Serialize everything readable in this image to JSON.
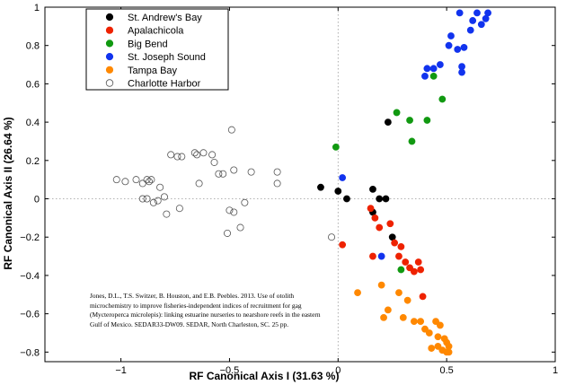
{
  "chart_data": {
    "type": "scatter",
    "title": "",
    "xlabel": "RF Canonical Axis I  (31.63 %)",
    "ylabel": "RF Canonical Axis II (26.64 %)",
    "xlim": [
      -1.35,
      1.0
    ],
    "ylim": [
      -0.85,
      1.0
    ],
    "xticks": [
      -1,
      -0.5,
      0,
      0.5,
      1
    ],
    "yticks": [
      1,
      0.8,
      0.6,
      0.4,
      0.2,
      0,
      -0.2,
      -0.4,
      -0.6,
      -0.8
    ],
    "xtick_labels": [
      "−1",
      "−0.5",
      "0",
      "0.5",
      "1"
    ],
    "ytick_labels": [
      "1",
      "0.8",
      "0.6",
      "0.4",
      "0.2",
      "0",
      "−0.2",
      "−0.4",
      "−0.6",
      "−0.8"
    ],
    "grid": false,
    "zero_lines": "dotted",
    "legend_position": "top-left",
    "series": [
      {
        "name": "St. Andrew's Bay",
        "color": "#000000",
        "filled": true,
        "x": [
          0.23,
          -0.08,
          0.0,
          0.04,
          0.16,
          0.19,
          0.22,
          0.16,
          0.25
        ],
        "y": [
          0.4,
          0.06,
          0.04,
          0.0,
          0.05,
          0.0,
          0.0,
          -0.07,
          -0.2
        ]
      },
      {
        "name": "Apalachicola",
        "color": "#ee2200",
        "filled": true,
        "x": [
          0.02,
          0.15,
          0.17,
          0.19,
          0.24,
          0.26,
          0.29,
          0.28,
          0.31,
          0.33,
          0.35,
          0.38,
          0.37,
          0.16,
          0.39
        ],
        "y": [
          -0.24,
          -0.05,
          -0.1,
          -0.15,
          -0.13,
          -0.23,
          -0.25,
          -0.3,
          -0.33,
          -0.36,
          -0.38,
          -0.37,
          -0.33,
          -0.3,
          -0.51
        ]
      },
      {
        "name": "Big Bend",
        "color": "#119911",
        "filled": true,
        "x": [
          0.27,
          0.33,
          0.41,
          0.48,
          0.44,
          0.34,
          0.29,
          -0.01
        ],
        "y": [
          0.45,
          0.41,
          0.41,
          0.52,
          0.64,
          0.3,
          -0.37,
          0.27
        ]
      },
      {
        "name": "St. Joseph Sound",
        "color": "#1133ee",
        "filled": true,
        "x": [
          0.56,
          0.64,
          0.68,
          0.69,
          0.62,
          0.66,
          0.61,
          0.51,
          0.52,
          0.58,
          0.55,
          0.57,
          0.57,
          0.47,
          0.44,
          0.41,
          0.4,
          0.02,
          0.2
        ],
        "y": [
          0.97,
          0.97,
          0.94,
          0.97,
          0.93,
          0.91,
          0.88,
          0.8,
          0.85,
          0.79,
          0.78,
          0.69,
          0.66,
          0.7,
          0.68,
          0.68,
          0.64,
          0.11,
          -0.3
        ]
      },
      {
        "name": "Tampa Bay",
        "color": "#ff8800",
        "filled": true,
        "x": [
          0.09,
          0.2,
          0.28,
          0.23,
          0.32,
          0.35,
          0.3,
          0.38,
          0.45,
          0.47,
          0.4,
          0.42,
          0.46,
          0.49,
          0.5,
          0.51,
          0.43,
          0.46,
          0.48,
          0.51,
          0.5,
          0.21
        ],
        "y": [
          -0.49,
          -0.45,
          -0.49,
          -0.58,
          -0.53,
          -0.64,
          -0.62,
          -0.64,
          -0.64,
          -0.66,
          -0.68,
          -0.7,
          -0.72,
          -0.73,
          -0.75,
          -0.77,
          -0.78,
          -0.77,
          -0.79,
          -0.8,
          -0.8,
          -0.62
        ]
      },
      {
        "name": "Charlotte Harbor",
        "color": "#555555",
        "filled": false,
        "x": [
          -1.02,
          -0.98,
          -0.93,
          -0.9,
          -0.9,
          -0.88,
          -0.86,
          -0.88,
          -0.83,
          -0.8,
          -0.79,
          -0.82,
          -0.77,
          -0.74,
          -0.73,
          -0.66,
          -0.64,
          -0.58,
          -0.57,
          -0.53,
          -0.49,
          -0.5,
          -0.48,
          -0.51,
          -0.48,
          -0.43,
          -0.45,
          -0.4,
          -0.28,
          -0.28,
          -0.03,
          -0.72,
          -0.62,
          -0.55,
          -0.87,
          -0.85,
          -0.65
        ],
        "y": [
          0.1,
          0.09,
          0.1,
          0.08,
          0.0,
          0.1,
          0.1,
          0.0,
          -0.01,
          0.01,
          -0.08,
          0.06,
          0.23,
          0.22,
          -0.05,
          0.24,
          0.08,
          0.23,
          0.19,
          0.13,
          0.36,
          -0.06,
          -0.07,
          -0.18,
          0.15,
          -0.02,
          -0.15,
          0.14,
          0.08,
          0.14,
          -0.2,
          0.22,
          0.24,
          0.13,
          0.09,
          -0.02,
          0.23
        ]
      }
    ]
  },
  "citation": {
    "text": "Jones, D.L., T.S. Switzer, B. Houston, and E.B. Peebles. 2013. Use of otolith microchemistry to improve fisheries-independent indices of recruitment for gag (Mycteroperca microlepis): linking estuarine nurseries to nearshore reefs in the eastern Gulf of Mexico. SEDAR33-DW09. SEDAR, North Charleston, SC. 25 pp."
  }
}
